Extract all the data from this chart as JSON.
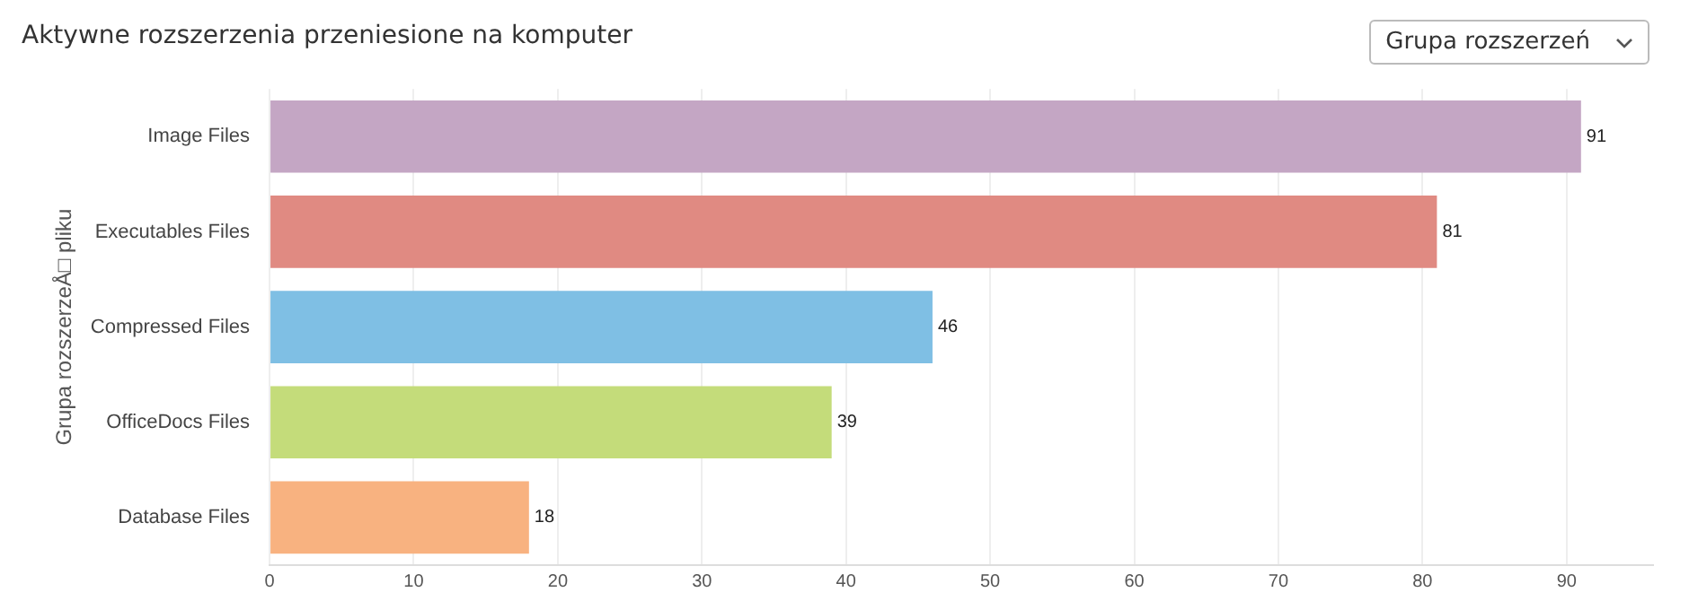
{
  "chart_data": {
    "type": "bar",
    "orientation": "horizontal",
    "title": "Aktywne rozszerzenia przeniesione na komputer",
    "ylabel": "Grupa rozszerzeÅ□ pliku",
    "annotations": [
      "Grupa rozszerzeń"
    ],
    "categories": [
      "Image Files",
      "Executables Files",
      "Compressed Files",
      "OfficeDocs Files",
      "Database Files"
    ],
    "values": [
      91,
      81,
      46,
      39,
      18
    ],
    "colors": [
      "#c4a6c4",
      "#e08a82",
      "#7fbfe4",
      "#c4dc7a",
      "#f8b280"
    ],
    "xlim": [
      0,
      96
    ],
    "xticks": [
      0,
      10,
      20,
      30,
      40,
      50,
      60,
      70,
      80,
      90
    ],
    "grid": "x",
    "legend": false,
    "data_labels": true
  }
}
